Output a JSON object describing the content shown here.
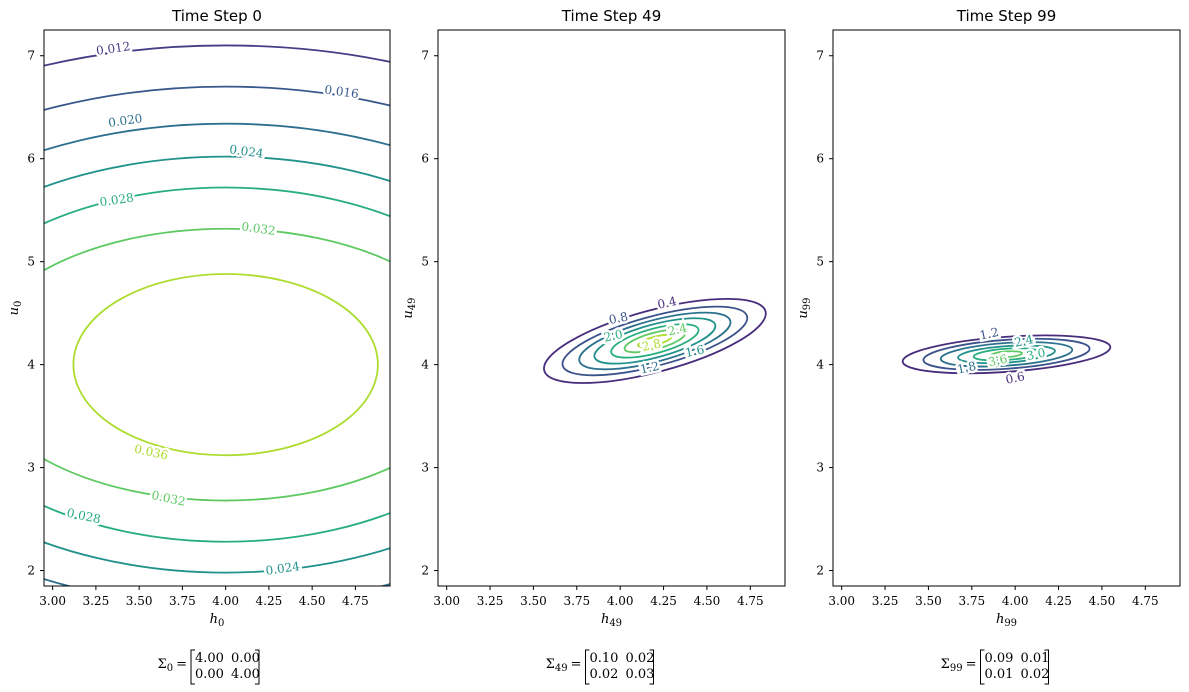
{
  "chart_data": [
    {
      "type": "contour",
      "title": "Time Step 0",
      "xlabel": "h",
      "xlabel_sub": "0",
      "ylabel": "u",
      "ylabel_sub": "0",
      "xlim": [
        2.95,
        4.95
      ],
      "ylim": [
        1.85,
        7.25
      ],
      "xticks": [
        "3.00",
        "3.25",
        "3.50",
        "3.75",
        "4.00",
        "4.25",
        "4.50",
        "4.75"
      ],
      "yticks": [
        "2",
        "3",
        "4",
        "5",
        "6",
        "7"
      ],
      "mean": [
        4.0,
        4.0
      ],
      "covariance": {
        "label": "Σ",
        "sub": "0",
        "rows": [
          [
            "4.00",
            "0.00"
          ],
          [
            "0.00",
            "4.00"
          ]
        ]
      },
      "levels": [
        {
          "value": 0.012,
          "label": "0.012",
          "color": "#433e85"
        },
        {
          "value": 0.016,
          "label": "0.016",
          "color": "#38588c"
        },
        {
          "value": 0.02,
          "label": "0.020",
          "color": "#2d708e"
        },
        {
          "value": 0.024,
          "label": "0.024",
          "color": "#21918c"
        },
        {
          "value": 0.028,
          "label": "0.028",
          "color": "#27ad81"
        },
        {
          "value": 0.032,
          "label": "0.032",
          "color": "#5ec962"
        },
        {
          "value": 0.036,
          "label": "0.036",
          "color": "#addc30"
        }
      ]
    },
    {
      "type": "contour",
      "title": "Time Step 49",
      "xlabel": "h",
      "xlabel_sub": "49",
      "ylabel": "u",
      "ylabel_sub": "49",
      "xlim": [
        2.95,
        4.95
      ],
      "ylim": [
        1.85,
        7.25
      ],
      "xticks": [
        "3.00",
        "3.25",
        "3.50",
        "3.75",
        "4.00",
        "4.25",
        "4.50",
        "4.75"
      ],
      "yticks": [
        "2",
        "3",
        "4",
        "5",
        "6",
        "7"
      ],
      "mean": [
        4.2,
        4.23
      ],
      "covariance": {
        "label": "Σ",
        "sub": "49",
        "rows": [
          [
            "0.10",
            "0.02"
          ],
          [
            "0.02",
            "0.03"
          ]
        ]
      },
      "levels": [
        {
          "value": 0.4,
          "label": "0.4",
          "color": "#472d7b"
        },
        {
          "value": 0.8,
          "label": "0.8",
          "color": "#3b528b"
        },
        {
          "value": 1.2,
          "label": "1.2",
          "color": "#2c728e"
        },
        {
          "value": 1.6,
          "label": "1.6",
          "color": "#21918c"
        },
        {
          "value": 2.0,
          "label": "2.0",
          "color": "#28ae80"
        },
        {
          "value": 2.4,
          "label": "2.4",
          "color": "#5ec962"
        },
        {
          "value": 2.8,
          "label": "2.8",
          "color": "#addc30"
        }
      ]
    },
    {
      "type": "contour",
      "title": "Time Step 99",
      "xlabel": "h",
      "xlabel_sub": "99",
      "ylabel": "u",
      "ylabel_sub": "99",
      "xlim": [
        2.95,
        4.95
      ],
      "ylim": [
        1.85,
        7.25
      ],
      "xticks": [
        "3.00",
        "3.25",
        "3.50",
        "3.75",
        "4.00",
        "4.25",
        "4.50",
        "4.75"
      ],
      "yticks": [
        "2",
        "3",
        "4",
        "5",
        "6",
        "7"
      ],
      "mean": [
        3.95,
        4.1
      ],
      "covariance": {
        "label": "Σ",
        "sub": "99",
        "rows": [
          [
            "0.09",
            "0.01"
          ],
          [
            "0.01",
            "0.02"
          ]
        ]
      },
      "levels": [
        {
          "value": 0.6,
          "label": "0.6",
          "color": "#472d7b"
        },
        {
          "value": 1.2,
          "label": "1.2",
          "color": "#3b528b"
        },
        {
          "value": 1.8,
          "label": "1.8",
          "color": "#2c728e"
        },
        {
          "value": 2.4,
          "label": "2.4",
          "color": "#21918c"
        },
        {
          "value": 3.0,
          "label": "3.0",
          "color": "#28ae80"
        },
        {
          "value": 3.6,
          "label": "3.6",
          "color": "#5ec962"
        }
      ]
    }
  ]
}
